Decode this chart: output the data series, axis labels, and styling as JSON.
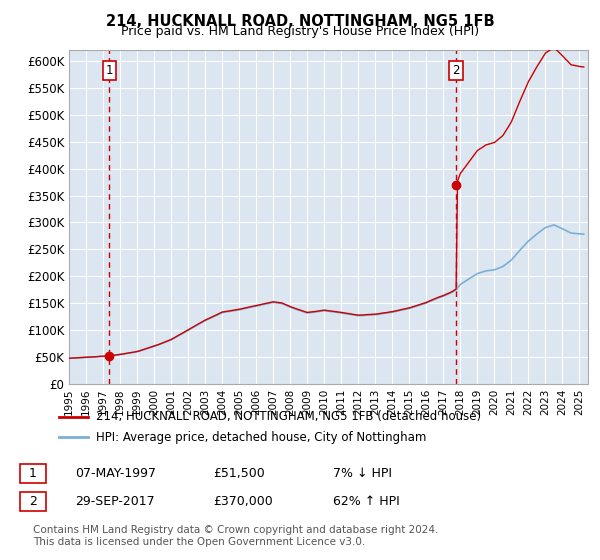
{
  "title1": "214, HUCKNALL ROAD, NOTTINGHAM, NG5 1FB",
  "title2": "Price paid vs. HM Land Registry's House Price Index (HPI)",
  "ylabel_ticks": [
    "£0",
    "£50K",
    "£100K",
    "£150K",
    "£200K",
    "£250K",
    "£300K",
    "£350K",
    "£400K",
    "£450K",
    "£500K",
    "£550K",
    "£600K"
  ],
  "ytick_values": [
    0,
    50000,
    100000,
    150000,
    200000,
    250000,
    300000,
    350000,
    400000,
    450000,
    500000,
    550000,
    600000
  ],
  "sale1_date": 1997.37,
  "sale1_price": 51500,
  "sale2_date": 2017.75,
  "sale2_price": 370000,
  "legend_line1": "214, HUCKNALL ROAD, NOTTINGHAM, NG5 1FB (detached house)",
  "legend_line2": "HPI: Average price, detached house, City of Nottingham",
  "table_row1": [
    "1",
    "07-MAY-1997",
    "£51,500",
    "7% ↓ HPI"
  ],
  "table_row2": [
    "2",
    "29-SEP-2017",
    "£370,000",
    "62% ↑ HPI"
  ],
  "footnote": "Contains HM Land Registry data © Crown copyright and database right 2024.\nThis data is licensed under the Open Government Licence v3.0.",
  "line_color_red": "#cc0000",
  "line_color_blue": "#7bafd4",
  "bg_color": "#dce6f1",
  "grid_color": "#ffffff",
  "xmin": 1995.0,
  "xmax": 2025.5,
  "ymax": 620000
}
